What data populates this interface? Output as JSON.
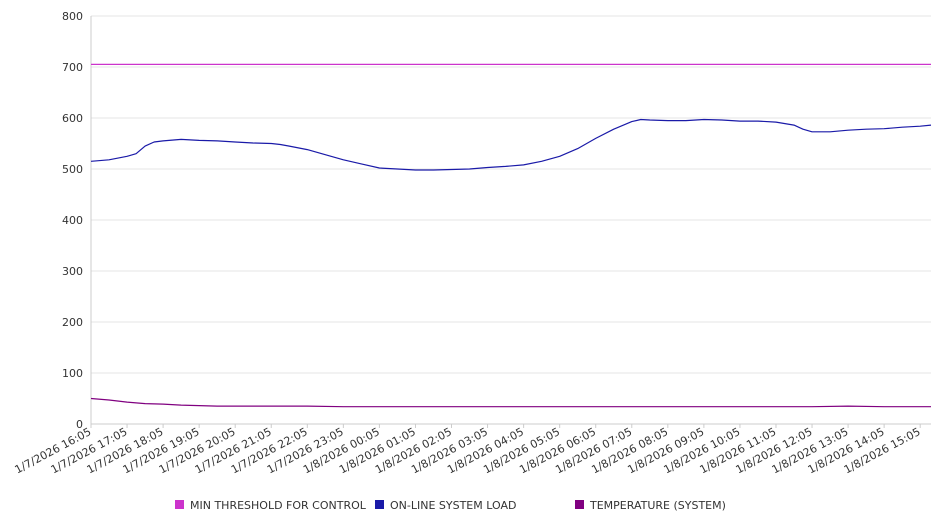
{
  "chart_data": {
    "type": "line",
    "title": "",
    "xlabel": "",
    "ylabel": "",
    "ylim": [
      0,
      800
    ],
    "yticks": [
      0,
      100,
      200,
      300,
      400,
      500,
      600,
      700,
      800
    ],
    "xlim": [
      0,
      23.3
    ],
    "xtick_labels": [
      "1/7/2026 16:05",
      "1/7/2026 17:05",
      "1/7/2026 18:05",
      "1/7/2026 19:05",
      "1/7/2026 20:05",
      "1/7/2026 21:05",
      "1/7/2026 22:05",
      "1/7/2026 23:05",
      "1/8/2026 00:05",
      "1/8/2026 01:05",
      "1/8/2026 02:05",
      "1/8/2026 03:05",
      "1/8/2026 04:05",
      "1/8/2026 05:05",
      "1/8/2026 06:05",
      "1/8/2026 07:05",
      "1/8/2026 08:05",
      "1/8/2026 09:05",
      "1/8/2026 10:05",
      "1/8/2026 11:05",
      "1/8/2026 12:05",
      "1/8/2026 13:05",
      "1/8/2026 14:05",
      "1/8/2026 15:05"
    ],
    "grid": "horizontal",
    "legend_position": "bottom",
    "series": [
      {
        "name": "MIN THRESHOLD FOR CONTROL",
        "color": "#cc33cc",
        "x": [
          0,
          23.3
        ],
        "values": [
          705,
          705
        ]
      },
      {
        "name": "ON-LINE SYSTEM LOAD",
        "color": "#1a1aa8",
        "x": [
          0,
          0.5,
          1.0,
          1.25,
          1.5,
          1.75,
          2.0,
          2.5,
          3.0,
          3.5,
          4.0,
          4.5,
          5.0,
          5.25,
          5.5,
          6.0,
          6.5,
          7.0,
          7.5,
          8.0,
          8.5,
          9.0,
          9.5,
          10.0,
          10.5,
          11.0,
          11.5,
          12.0,
          12.5,
          13.0,
          13.5,
          14.0,
          14.5,
          15.0,
          15.25,
          15.5,
          16.0,
          16.5,
          17.0,
          17.5,
          18.0,
          18.5,
          19.0,
          19.5,
          19.75,
          20.0,
          20.5,
          21.0,
          21.5,
          22.0,
          22.5,
          23.0,
          23.3
        ],
        "values": [
          515,
          518,
          525,
          530,
          545,
          553,
          555,
          558,
          556,
          555,
          553,
          551,
          550,
          548,
          545,
          538,
          528,
          518,
          510,
          502,
          500,
          498,
          498,
          499,
          500,
          503,
          505,
          508,
          515,
          525,
          540,
          560,
          578,
          593,
          597,
          596,
          595,
          595,
          597,
          596,
          594,
          594,
          592,
          586,
          578,
          573,
          573,
          576,
          578,
          579,
          582,
          584,
          586
        ]
      },
      {
        "name": "TEMPERATURE (SYSTEM)",
        "color": "#800080",
        "x": [
          0,
          0.5,
          1.0,
          1.5,
          2.0,
          2.5,
          3.0,
          3.5,
          4.0,
          5.0,
          6.0,
          7.0,
          8.0,
          9.0,
          10.0,
          11.0,
          12.0,
          13.0,
          14.0,
          15.0,
          16.0,
          17.0,
          18.0,
          19.0,
          20.0,
          21.0,
          22.0,
          23.0,
          23.3
        ],
        "values": [
          50,
          47,
          43,
          40,
          39,
          37,
          36,
          35,
          35,
          35,
          35,
          34,
          34,
          34,
          34,
          34,
          34,
          34,
          34,
          34,
          34,
          34,
          34,
          34,
          34,
          35,
          34,
          34,
          34
        ]
      }
    ]
  }
}
